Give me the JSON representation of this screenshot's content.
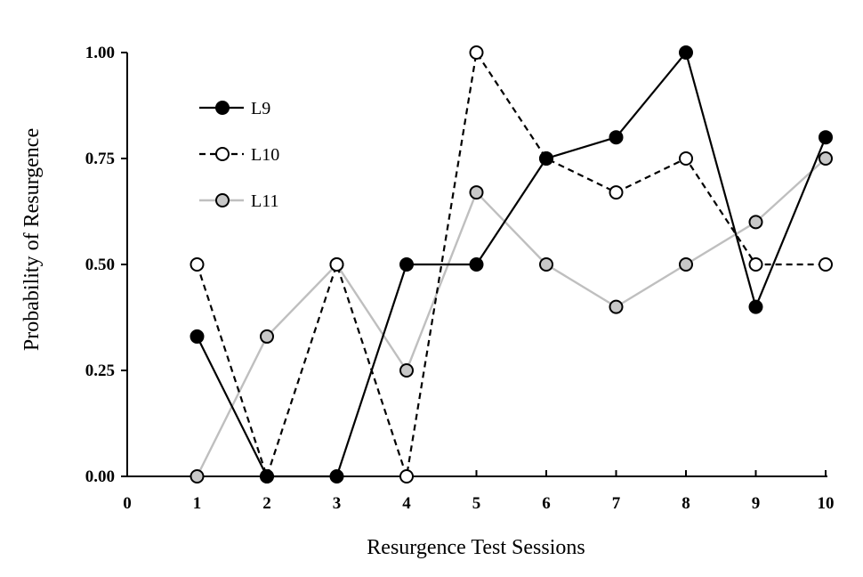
{
  "chart_data": {
    "type": "line",
    "title": "",
    "xlabel": "Resurgence Test Sessions",
    "ylabel": "Probability of Resurgence",
    "xlim": [
      0,
      10
    ],
    "ylim": [
      0,
      1
    ],
    "x_ticks": [
      "0",
      "1",
      "2",
      "3",
      "4",
      "5",
      "6",
      "7",
      "8",
      "9",
      "10"
    ],
    "y_ticks": [
      "0.00",
      "0.25",
      "0.50",
      "0.75",
      "1.00"
    ],
    "grid": false,
    "legend_position": "top-left",
    "series": [
      {
        "name": "L9",
        "style": "solid",
        "line_color": "#000000",
        "marker_fill": "#000000",
        "points": [
          [
            1,
            0.33
          ],
          [
            2,
            0
          ],
          [
            3,
            0
          ],
          [
            4,
            0.5
          ],
          [
            5,
            0.5
          ],
          [
            6,
            0.75
          ],
          [
            7,
            0.8
          ],
          [
            8,
            1.0
          ],
          [
            9,
            0.4
          ],
          [
            10,
            0.8
          ]
        ]
      },
      {
        "name": "L10",
        "style": "dashed",
        "line_color": "#000000",
        "marker_fill": "#ffffff",
        "points": [
          [
            1,
            0.5
          ],
          [
            2,
            0
          ],
          [
            3,
            0.5
          ],
          [
            4,
            0
          ],
          [
            5,
            1.0
          ],
          [
            6,
            0.75
          ],
          [
            7,
            0.67
          ],
          [
            8,
            0.75
          ],
          [
            9,
            0.5
          ],
          [
            10,
            0.5
          ]
        ]
      },
      {
        "name": "L11",
        "style": "solid",
        "line_color": "#bfbfbf",
        "marker_fill": "#c8c8c8",
        "points": [
          [
            1,
            0
          ],
          [
            2,
            0.33
          ],
          [
            3,
            0.5
          ],
          [
            4,
            0.25
          ],
          [
            5,
            0.67
          ],
          [
            6,
            0.5
          ],
          [
            7,
            0.4
          ],
          [
            8,
            0.5
          ],
          [
            9,
            0.6
          ],
          [
            10,
            0.75
          ]
        ]
      }
    ]
  }
}
